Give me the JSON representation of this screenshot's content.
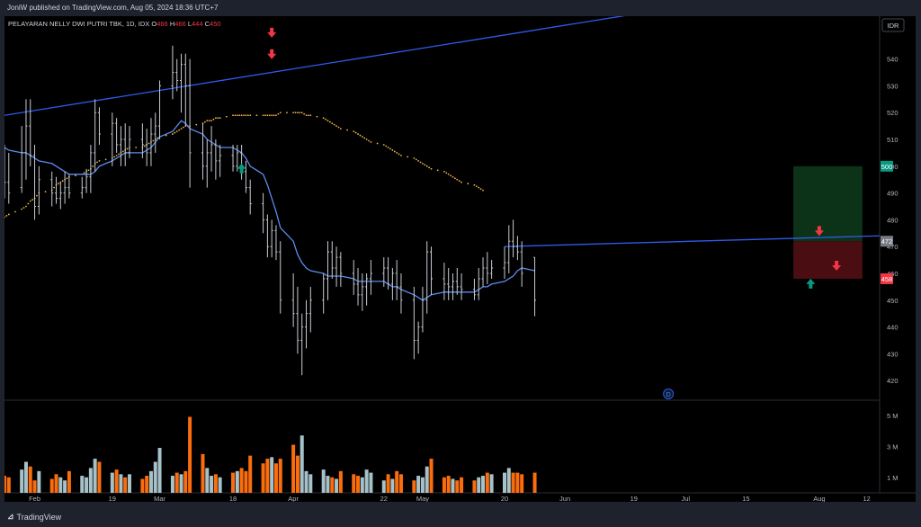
{
  "header": {
    "published": "JoniW published on TradingView.com, Aug 05, 2024 18:36 UTC+7"
  },
  "footer": {
    "logo_text": "TradingView"
  },
  "chart_data": {
    "type": "ohlc",
    "symbol_line": {
      "name": "PELAYARAN NELLY DWI PUTRI TBK, 1D, IDX",
      "o_label": "O",
      "o_value": "466",
      "h_label": "H",
      "h_value": "466",
      "l_label": "L",
      "l_value": "444",
      "c_label": "C",
      "c_value": "450"
    },
    "currency": "IDR",
    "price_axis": {
      "min": 413,
      "max": 556,
      "ticks": [
        420,
        430,
        440,
        450,
        460,
        470,
        480,
        490,
        500,
        510,
        520,
        530,
        540
      ]
    },
    "volume_axis": {
      "max": 5.8,
      "ticks": [
        {
          "v": 1,
          "label": "1 M"
        },
        {
          "v": 3,
          "label": "3 M"
        },
        {
          "v": 5,
          "label": "5 M"
        }
      ]
    },
    "x_axis": {
      "start_date": "2024-01-25",
      "end_date": "2024-08-15",
      "ticks": [
        {
          "date": "2024-02-01",
          "label": "Feb"
        },
        {
          "date": "2024-02-19",
          "label": "19"
        },
        {
          "date": "2024-03-01",
          "label": "Mar"
        },
        {
          "date": "2024-03-18",
          "label": "18"
        },
        {
          "date": "2024-04-01",
          "label": "Apr"
        },
        {
          "date": "2024-04-22",
          "label": "22"
        },
        {
          "date": "2024-05-01",
          "label": "May"
        },
        {
          "date": "2024-05-20",
          "label": "20"
        },
        {
          "date": "2024-06-03",
          "label": "Jun"
        },
        {
          "date": "2024-06-19",
          "label": "19"
        },
        {
          "date": "2024-07-01",
          "label": "Jul"
        },
        {
          "date": "2024-07-15",
          "label": "15"
        },
        {
          "date": "2024-08-01",
          "label": "Aug"
        },
        {
          "date": "2024-08-12",
          "label": "12"
        }
      ]
    },
    "bars": [
      [
        496,
        508,
        488,
        494
      ],
      [
        494,
        505,
        486,
        490
      ],
      [
        492,
        515,
        490,
        505
      ],
      [
        505,
        525,
        495,
        515
      ],
      [
        515,
        525,
        500,
        504
      ],
      [
        504,
        508,
        480,
        485
      ],
      [
        485,
        500,
        482,
        495
      ],
      [
        495,
        498,
        485,
        490
      ],
      [
        490,
        496,
        486,
        488
      ],
      [
        488,
        494,
        484,
        490
      ],
      [
        490,
        498,
        486,
        492
      ],
      [
        492,
        497,
        488,
        490
      ],
      [
        490,
        496,
        488,
        492
      ],
      [
        492,
        499,
        490,
        496
      ],
      [
        496,
        508,
        490,
        505
      ],
      [
        505,
        525,
        498,
        520
      ],
      [
        520,
        522,
        508,
        512
      ],
      [
        512,
        520,
        500,
        516
      ],
      [
        516,
        518,
        505,
        508
      ],
      [
        508,
        515,
        500,
        510
      ],
      [
        510,
        516,
        500,
        505
      ],
      [
        505,
        515,
        503,
        510
      ],
      [
        510,
        516,
        503,
        508
      ],
      [
        508,
        514,
        500,
        505
      ],
      [
        505,
        518,
        500,
        512
      ],
      [
        512,
        520,
        505,
        515
      ],
      [
        515,
        532,
        510,
        530
      ],
      [
        530,
        545,
        525,
        535
      ],
      [
        535,
        540,
        528,
        532
      ],
      [
        532,
        542,
        520,
        538
      ],
      [
        538,
        542,
        515,
        530
      ],
      [
        530,
        540,
        492,
        505
      ],
      [
        505,
        516,
        495,
        500
      ],
      [
        500,
        510,
        492,
        505
      ],
      [
        505,
        515,
        498,
        508
      ],
      [
        508,
        510,
        495,
        502
      ],
      [
        502,
        508,
        496,
        504
      ],
      [
        504,
        508,
        498,
        500
      ],
      [
        500,
        508,
        498,
        505
      ],
      [
        505,
        508,
        495,
        498
      ],
      [
        498,
        502,
        490,
        492
      ],
      [
        492,
        495,
        482,
        486
      ],
      [
        486,
        490,
        475,
        480
      ],
      [
        480,
        482,
        466,
        470
      ],
      [
        470,
        480,
        466,
        476
      ],
      [
        476,
        478,
        465,
        468
      ],
      [
        468,
        472,
        445,
        450
      ],
      [
        450,
        460,
        440,
        445
      ],
      [
        445,
        455,
        430,
        435
      ],
      [
        435,
        445,
        422,
        440
      ],
      [
        440,
        450,
        432,
        445
      ],
      [
        445,
        455,
        438,
        450
      ],
      [
        450,
        460,
        445,
        458
      ],
      [
        458,
        472,
        450,
        468
      ],
      [
        468,
        472,
        458,
        462
      ],
      [
        462,
        470,
        455,
        466
      ],
      [
        466,
        468,
        455,
        460
      ],
      [
        460,
        465,
        452,
        456
      ],
      [
        456,
        462,
        448,
        452
      ],
      [
        452,
        460,
        446,
        455
      ],
      [
        455,
        460,
        448,
        458
      ],
      [
        458,
        465,
        452,
        460
      ],
      [
        460,
        466,
        455,
        462
      ],
      [
        462,
        466,
        454,
        456
      ],
      [
        456,
        462,
        450,
        460
      ],
      [
        460,
        465,
        450,
        455
      ],
      [
        455,
        460,
        445,
        450
      ],
      [
        450,
        455,
        428,
        435
      ],
      [
        435,
        442,
        430,
        440
      ],
      [
        440,
        455,
        438,
        450
      ],
      [
        450,
        472,
        445,
        468
      ],
      [
        468,
        470,
        452,
        458
      ],
      [
        458,
        464,
        450,
        456
      ],
      [
        456,
        462,
        450,
        455
      ],
      [
        455,
        460,
        450,
        457
      ],
      [
        457,
        462,
        452,
        455
      ],
      [
        455,
        460,
        450,
        454
      ],
      [
        454,
        458,
        450,
        452
      ],
      [
        452,
        462,
        450,
        458
      ],
      [
        458,
        466,
        455,
        462
      ],
      [
        462,
        468,
        456,
        460
      ],
      [
        460,
        465,
        458,
        462
      ],
      [
        462,
        470,
        458,
        464
      ],
      [
        464,
        478,
        460,
        472
      ],
      [
        472,
        480,
        466,
        470
      ],
      [
        470,
        474,
        465,
        468
      ],
      [
        468,
        472,
        455,
        460
      ],
      [
        466,
        466,
        444,
        450
      ]
    ],
    "volumes": [
      1.1,
      1.0,
      1.5,
      2.0,
      1.7,
      0.8,
      1.4,
      0.9,
      1.2,
      1.0,
      0.8,
      1.4,
      1.1,
      1.0,
      1.6,
      2.2,
      2.0,
      1.3,
      1.5,
      1.2,
      1.0,
      1.2,
      0.9,
      1.1,
      1.4,
      2.0,
      2.9,
      1.1,
      1.3,
      1.2,
      1.4,
      4.9,
      2.5,
      1.6,
      1.1,
      1.2,
      1.0,
      1.3,
      1.4,
      1.6,
      1.4,
      2.4,
      1.9,
      2.2,
      2.3,
      1.9,
      2.2,
      3.1,
      2.4,
      3.7,
      1.4,
      1.2,
      1.5,
      1.1,
      1.0,
      0.9,
      1.4,
      1.2,
      1.1,
      1.0,
      1.5,
      1.3,
      0.8,
      1.2,
      0.9,
      1.4,
      1.2,
      0.8,
      1.1,
      1.0,
      1.7,
      2.2,
      1.0,
      1.1,
      0.9,
      0.8,
      1.0,
      0.8,
      1.0,
      1.1,
      1.3,
      1.2,
      1.3,
      1.6,
      1.3,
      1.3,
      1.2,
      1.3
    ],
    "ema": [
      507,
      506,
      505,
      505,
      504,
      503,
      502,
      501,
      500,
      499,
      498,
      497,
      497,
      497,
      497,
      498,
      500,
      502,
      503,
      504,
      505,
      505,
      505,
      506,
      507,
      509,
      511,
      513,
      515,
      517,
      516,
      514,
      512,
      510,
      509,
      508,
      507,
      507,
      506,
      505,
      503,
      500,
      497,
      493,
      488,
      483,
      477,
      472,
      467,
      464,
      462,
      461,
      460,
      459,
      459,
      459,
      459,
      458,
      457,
      457,
      457,
      457,
      457,
      456,
      455,
      455,
      454,
      452,
      451,
      450,
      451,
      452,
      453,
      453,
      453,
      453,
      453,
      453,
      454,
      455,
      455,
      456,
      457,
      458,
      459,
      461,
      462,
      461
    ],
    "sma": [
      481,
      482,
      484,
      485,
      487,
      488,
      490,
      491,
      493,
      494,
      495,
      496,
      497,
      498,
      499,
      501,
      502,
      503,
      504,
      505,
      506,
      507,
      507,
      508,
      509,
      510,
      511,
      512,
      513,
      514,
      515,
      515,
      516,
      517,
      517,
      518,
      518,
      519,
      519,
      519,
      519,
      519,
      519,
      519,
      519,
      519,
      520,
      520,
      520,
      520,
      519,
      519,
      518,
      517,
      516,
      515,
      514,
      513,
      512,
      511,
      510,
      509,
      508,
      507,
      506,
      505,
      504,
      503,
      502,
      501,
      500,
      499,
      498,
      497,
      496,
      495,
      494,
      493,
      492,
      491
    ],
    "sma_offset": 0,
    "upper_trendline": {
      "from": {
        "date": "2024-01-25",
        "price": 519
      },
      "to": {
        "date": "2024-06-20",
        "price": 557
      }
    },
    "lower_trendline": {
      "from": {
        "date": "2024-05-20",
        "price": 470
      },
      "to": {
        "date": "2024-08-15",
        "price": 474
      }
    },
    "position_box": {
      "entry": 472,
      "target": 500,
      "stop": 458,
      "from_date": "2024-07-26",
      "to_date": "2024-08-11"
    },
    "price_tags": [
      {
        "price": 500,
        "label": "500",
        "color": "#089981"
      },
      {
        "price": 472,
        "label": "472",
        "color": "#787b86"
      },
      {
        "price": 458,
        "label": "458",
        "color": "#f23645"
      }
    ],
    "markers": [
      {
        "date": "2024-03-20",
        "price": 499,
        "dir": "up"
      },
      {
        "date": "2024-03-27",
        "price": 550,
        "dir": "down"
      },
      {
        "date": "2024-03-27",
        "price": 542,
        "dir": "down"
      },
      {
        "date": "2024-07-30",
        "price": 456,
        "dir": "up"
      },
      {
        "date": "2024-08-01",
        "price": 476,
        "dir": "down"
      },
      {
        "date": "2024-08-05",
        "price": 463,
        "dir": "down"
      }
    ],
    "dividend_marker": {
      "date": "2024-06-27",
      "label": "D"
    },
    "colors": {
      "bars": "#c8cbd2",
      "ema": "#5b8def",
      "sma": "#f0b54a",
      "trendline": "#2f5bea",
      "vol_up": "#a7c1c8",
      "vol_down": "#fb6d0c",
      "up_arrow": "#089981",
      "down_arrow": "#f23645",
      "target_fill": "#0c3317",
      "stop_fill": "#4a0e12"
    }
  }
}
